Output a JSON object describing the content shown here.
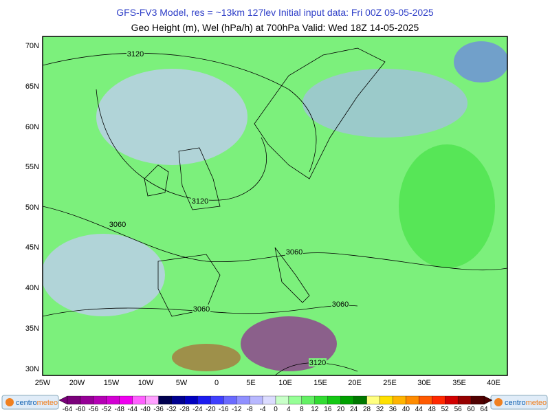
{
  "header": {
    "line1": "GFS-FV3 Model, res = ~13km 127lev    Initial input data: Fri 00Z 09-05-2025",
    "line2": "Geo Height (m), Wel (hPa/h) at 700hPa  Valid: Wed 18Z 14-05-2025"
  },
  "map": {
    "lat_labels": [
      "70N",
      "65N",
      "60N",
      "55N",
      "50N",
      "45N",
      "40N",
      "35N",
      "30N"
    ],
    "lon_labels": [
      "25W",
      "20W",
      "15W",
      "10W",
      "5W",
      "0",
      "5E",
      "10E",
      "15E",
      "20E",
      "25E",
      "30E",
      "35E",
      "40E"
    ],
    "contour_labels": [
      "3120",
      "3120",
      "3060",
      "3060",
      "3060",
      "3060",
      "3120"
    ]
  },
  "colorbar": {
    "labels": [
      "-64",
      "-60",
      "-56",
      "-52",
      "-48",
      "-44",
      "-40",
      "-36",
      "-32",
      "-28",
      "-24",
      "-20",
      "-16",
      "-12",
      "-8",
      "-4",
      "0",
      "4",
      "8",
      "12",
      "16",
      "20",
      "24",
      "28",
      "32",
      "36",
      "40",
      "44",
      "48",
      "52",
      "56",
      "60",
      "64"
    ],
    "colors": [
      "#7a007a",
      "#960096",
      "#b400b4",
      "#d200d2",
      "#f000f0",
      "#ff60ff",
      "#ffa0ff",
      "#000050",
      "#000090",
      "#0000c0",
      "#1c1cf0",
      "#4040ff",
      "#6a6aff",
      "#9090ff",
      "#b8b8ff",
      "#dcdcff",
      "#c8ffc8",
      "#96ff96",
      "#64f064",
      "#32dc32",
      "#14c814",
      "#00a000",
      "#007800",
      "#ffff80",
      "#ffe000",
      "#ffb400",
      "#ff8c00",
      "#ff5a00",
      "#ff2800",
      "#d20000",
      "#960000",
      "#500000"
    ]
  },
  "logo": {
    "part1": "centro",
    "part2": "meteo"
  }
}
